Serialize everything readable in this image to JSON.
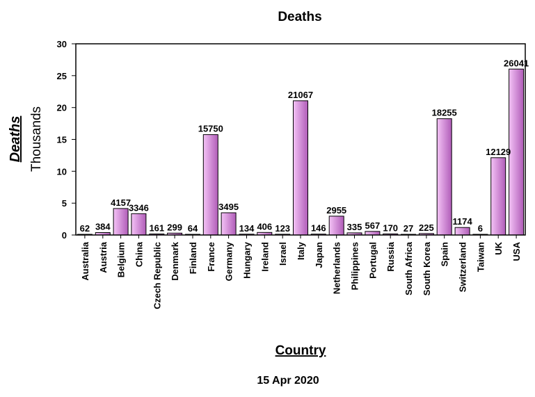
{
  "chart_data": {
    "type": "bar",
    "title": "Deaths",
    "xlabel": "Country",
    "ylabel": "Deaths",
    "yunit": "Thousands",
    "subtitle": "15 Apr 2020",
    "ylim": [
      0,
      30
    ],
    "yticks": [
      "0",
      "5",
      "10",
      "15",
      "20",
      "25",
      "30"
    ],
    "grid": false,
    "bar_color_light": "#f4c3f6",
    "bar_color_dark": "#b05cb8",
    "categories": [
      "Australia",
      "Austria",
      "Belgium",
      "China",
      "Czech Republic",
      "Denmark",
      "Finland",
      "France",
      "Germany",
      "Hungary",
      "Ireland",
      "Israel",
      "Italy",
      "Japan",
      "Netherlands",
      "Philippines",
      "Portugal",
      "Russia",
      "South Africa",
      "South Korea",
      "Spain",
      "Switzerland",
      "Taiwan",
      "UK",
      "USA"
    ],
    "values": [
      62,
      384,
      4157,
      3346,
      161,
      299,
      64,
      15750,
      3495,
      134,
      406,
      123,
      21067,
      146,
      2955,
      335,
      567,
      170,
      27,
      225,
      18255,
      1174,
      6,
      12129,
      26041
    ],
    "value_labels": [
      "62",
      "384",
      "4157",
      "3346",
      "161",
      "299",
      "64",
      "15750",
      "3495",
      "134",
      "406",
      "123",
      "21067",
      "146",
      "2955",
      "335",
      "567",
      "170",
      "27",
      "225",
      "18255",
      "1174",
      "6",
      "12129",
      "26041"
    ]
  }
}
